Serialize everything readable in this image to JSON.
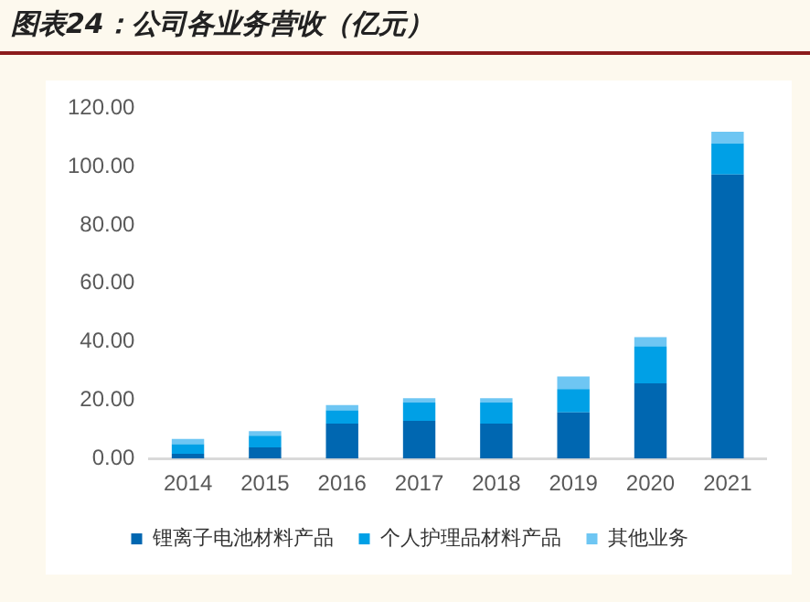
{
  "chart_data": {
    "type": "bar",
    "title": "图表24：公司各业务营收（亿元）",
    "categories": [
      "2014",
      "2015",
      "2016",
      "2017",
      "2018",
      "2019",
      "2020",
      "2021"
    ],
    "stacked": true,
    "series": [
      {
        "name": "锂离子电池材料产品",
        "color": "#0067b1",
        "values": [
          1.6,
          3.8,
          12.0,
          12.9,
          12.0,
          15.8,
          25.8,
          97.3
        ]
      },
      {
        "name": "个人护理品材料产品",
        "color": "#00a0e6",
        "values": [
          3.3,
          4.0,
          4.5,
          6.3,
          7.2,
          8.0,
          12.7,
          10.7
        ]
      },
      {
        "name": "其他业务",
        "color": "#6ec6f3",
        "values": [
          1.8,
          1.6,
          1.8,
          1.5,
          1.5,
          4.3,
          3.1,
          4.0
        ]
      }
    ],
    "ylim": [
      0,
      120
    ],
    "yticks": [
      {
        "value": 0,
        "label": "0.00"
      },
      {
        "value": 20,
        "label": "20.00"
      },
      {
        "value": 40,
        "label": "40.00"
      },
      {
        "value": 60,
        "label": "60.00"
      },
      {
        "value": 80,
        "label": "80.00"
      },
      {
        "value": 100,
        "label": "100.00"
      },
      {
        "value": 120,
        "label": "120.00"
      }
    ],
    "grid": false,
    "legend": "bottom"
  }
}
